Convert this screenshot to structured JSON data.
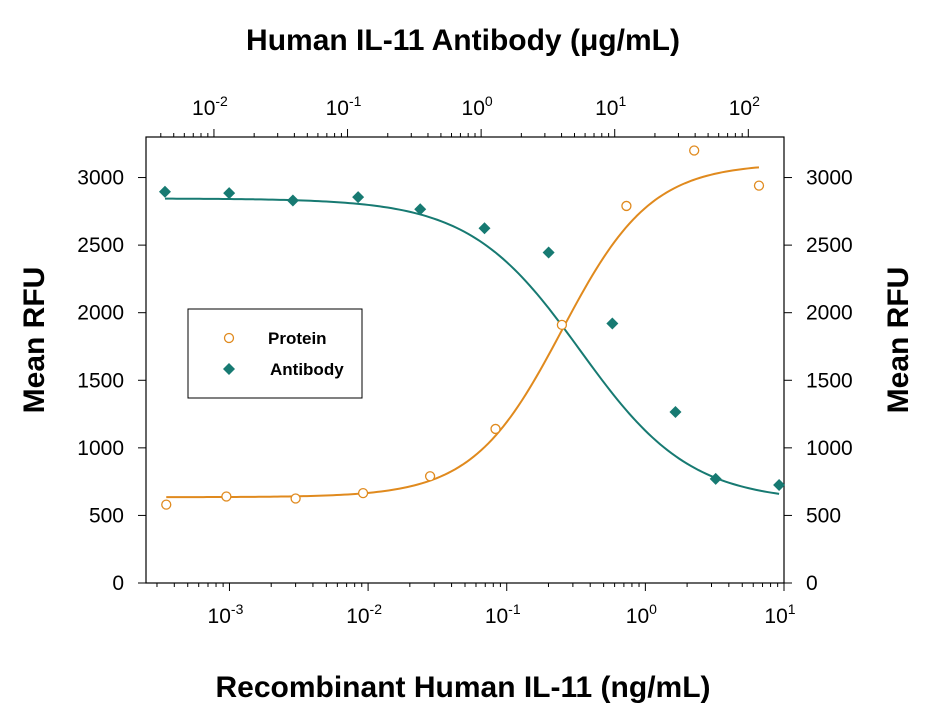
{
  "chart_data": {
    "type": "scatter",
    "title": "Human IL-11 Antibody (μg/mL)",
    "xlabel": "Recombinant Human IL-11 (ng/mL)",
    "ylabel": "Mean RFU",
    "ylabel_right": "Mean RFU",
    "x_scale": "log",
    "xlim": [
      0.00025,
      10
    ],
    "ylim": [
      0,
      3300
    ],
    "y_ticks": [
      0,
      500,
      1000,
      1500,
      2000,
      2500,
      3000
    ],
    "x_ticks_bottom": [
      {
        "value": 0.001,
        "base": "10",
        "exp": "-3"
      },
      {
        "value": 0.01,
        "base": "10",
        "exp": "-2"
      },
      {
        "value": 0.1,
        "base": "10",
        "exp": "-1"
      },
      {
        "value": 1,
        "base": "10",
        "exp": "0"
      },
      {
        "value": 10,
        "base": "10",
        "exp": "1"
      }
    ],
    "top_axis": {
      "label": "Human IL-11 Antibody (μg/mL)",
      "scale": "log",
      "xlim": [
        0.0031,
        185
      ],
      "ticks": [
        {
          "value": 0.01,
          "base": "10",
          "exp": "-2"
        },
        {
          "value": 0.1,
          "base": "10",
          "exp": "-1"
        },
        {
          "value": 1,
          "base": "10",
          "exp": "0"
        },
        {
          "value": 10,
          "base": "10",
          "exp": "1"
        },
        {
          "value": 100,
          "base": "10",
          "exp": "2"
        }
      ]
    },
    "legend_position": "center-left",
    "series": [
      {
        "name": "Protein",
        "color": "#e08a1e",
        "marker": "open-circle",
        "axis": "bottom",
        "x": [
          0.00035,
          0.00095,
          0.003,
          0.0092,
          0.028,
          0.083,
          0.25,
          0.73,
          2.25,
          6.6
        ],
        "y": [
          580,
          640,
          625,
          665,
          790,
          1140,
          1910,
          2790,
          3200,
          2940
        ],
        "fit": {
          "bottom": 635,
          "top": 3105,
          "ec50": 0.25,
          "hill": 1.35
        }
      },
      {
        "name": "Antibody",
        "color": "#177a72",
        "marker": "filled-diamond",
        "axis": "top",
        "x": [
          0.0043,
          0.013,
          0.039,
          0.12,
          0.35,
          1.06,
          3.2,
          9.6,
          28.5,
          57,
          170
        ],
        "y": [
          2895,
          2885,
          2830,
          2855,
          2765,
          2625,
          2445,
          1920,
          1265,
          770,
          725
        ],
        "fit": {
          "bottom": 600,
          "top": 2845,
          "ec50": 5.5,
          "hill": 1.05
        }
      }
    ]
  }
}
